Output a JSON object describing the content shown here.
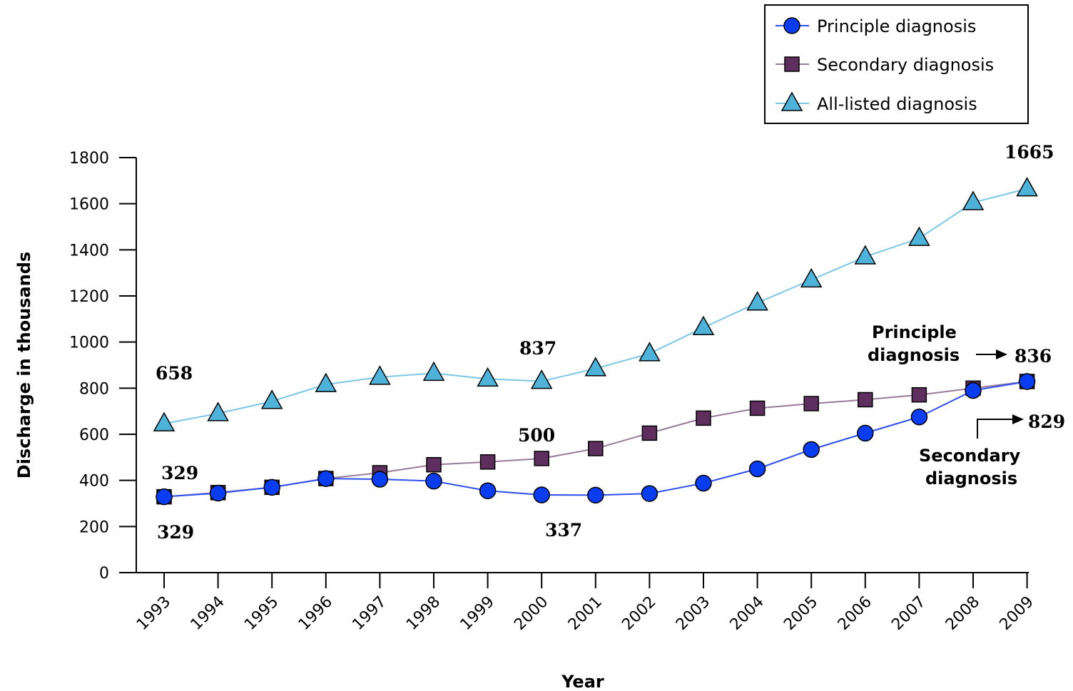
{
  "chart_data": {
    "type": "line",
    "xlabel": "Year",
    "ylabel": "Discharge in thousands",
    "ylim": [
      0,
      1800
    ],
    "yticks": [
      0,
      200,
      400,
      600,
      800,
      1000,
      1200,
      1400,
      1600,
      1800
    ],
    "categories": [
      "1993",
      "1994",
      "1995",
      "1996",
      "1997",
      "1998",
      "1999",
      "2000",
      "2001",
      "2002",
      "2003",
      "2004",
      "2005",
      "2006",
      "2007",
      "2008",
      "2009"
    ],
    "legend_position": "top-right",
    "grid": false,
    "series": [
      {
        "name": "Principle diagnosis",
        "marker": "circle",
        "color": "#0a3cf0",
        "line_color": "#2b4ef0",
        "values": [
          329,
          345,
          370,
          408,
          405,
          397,
          355,
          337,
          336,
          343,
          388,
          450,
          534,
          605,
          675,
          790,
          829
        ]
      },
      {
        "name": "Secondary diagnosis",
        "marker": "square",
        "color": "#5e2f5e",
        "line_color": "#9a7a9a",
        "values": [
          329,
          347,
          370,
          408,
          433,
          468,
          480,
          495,
          538,
          605,
          670,
          713,
          733,
          750,
          771,
          800,
          829
        ]
      },
      {
        "name": "All-listed diagnosis",
        "marker": "triangle",
        "color": "#4fb3d9",
        "line_color": "#7cc6e6",
        "values": [
          646,
          690,
          743,
          816,
          848,
          865,
          840,
          830,
          885,
          950,
          1063,
          1170,
          1270,
          1370,
          1450,
          1605,
          1665
        ]
      }
    ],
    "annotations": [
      {
        "id": "a-658",
        "text": "658"
      },
      {
        "id": "a-329-top",
        "text": "329"
      },
      {
        "id": "a-329-bottom",
        "text": "329"
      },
      {
        "id": "a-837",
        "text": "837"
      },
      {
        "id": "a-500",
        "text": "500"
      },
      {
        "id": "a-337",
        "text": "337"
      },
      {
        "id": "a-1665",
        "text": "1665"
      },
      {
        "id": "a-836",
        "text": "836"
      },
      {
        "id": "a-829",
        "text": "829"
      },
      {
        "id": "a-principle-1",
        "text": "Principle"
      },
      {
        "id": "a-principle-2",
        "text": "diagnosis"
      },
      {
        "id": "a-secondary-1",
        "text": "Secondary"
      },
      {
        "id": "a-secondary-2",
        "text": "diagnosis"
      }
    ]
  }
}
